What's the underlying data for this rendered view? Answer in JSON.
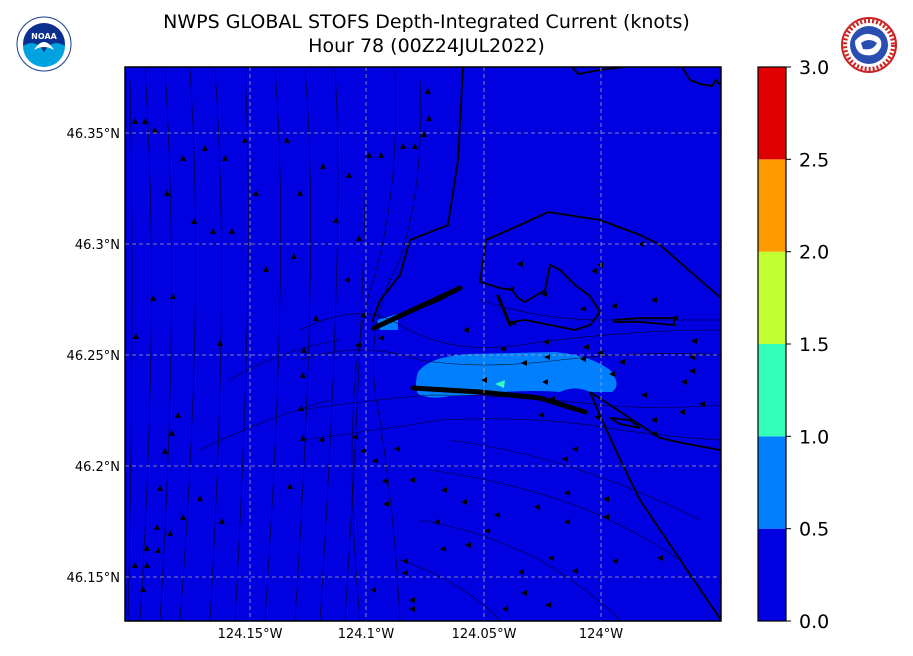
{
  "title": {
    "line1": "NWPS GLOBAL STOFS Depth-Integrated Current (knots)",
    "line2": "Hour 78 (00Z24JUL2022)"
  },
  "logos": {
    "left": "noara-logo",
    "left_text": "NOAA",
    "right": "nws-logo",
    "right_text": "NATIONAL WEATHER SERVICE"
  },
  "chart_data": {
    "type": "heatmap",
    "title": "NWPS GLOBAL STOFS Depth-Integrated Current (knots)",
    "subtitle": "Hour 78 (00Z24JUL2022)",
    "xlim": [
      -124.199,
      -123.948
    ],
    "ylim": [
      46.13,
      46.38
    ],
    "x_ticks": [
      {
        "value": -124.15,
        "label": "124.15°W"
      },
      {
        "value": -124.1,
        "label": "124.1°W"
      },
      {
        "value": -124.05,
        "label": "124.05°W"
      },
      {
        "value": -124.0,
        "label": "124°W"
      }
    ],
    "y_ticks": [
      {
        "value": 46.35,
        "label": "46.35°N"
      },
      {
        "value": 46.3,
        "label": "46.3°N"
      },
      {
        "value": 46.25,
        "label": "46.25°N"
      },
      {
        "value": 46.2,
        "label": "46.2°N"
      },
      {
        "value": 46.15,
        "label": "46.15°N"
      }
    ],
    "grid": true,
    "colorbar": {
      "range": [
        0.0,
        3.0
      ],
      "ticks": [
        "0.0",
        "0.5",
        "1.0",
        "1.5",
        "2.0",
        "2.5",
        "3.0"
      ],
      "bins": [
        {
          "from": 0.0,
          "to": 0.5,
          "color": "#0000e0"
        },
        {
          "from": 0.5,
          "to": 1.0,
          "color": "#0080ff"
        },
        {
          "from": 1.0,
          "to": 1.5,
          "color": "#33ffbb"
        },
        {
          "from": 1.5,
          "to": 2.0,
          "color": "#c0ff33"
        },
        {
          "from": 2.0,
          "to": 2.5,
          "color": "#ff9900"
        },
        {
          "from": 2.5,
          "to": 3.0,
          "color": "#e00000"
        }
      ]
    },
    "regions": [
      {
        "name": "background",
        "value_range": [
          0.0,
          0.5
        ]
      },
      {
        "name": "river-mouth-jet",
        "value_range": [
          0.5,
          1.0
        ]
      },
      {
        "name": "jet-core",
        "value_range": [
          1.0,
          1.5
        ]
      }
    ]
  }
}
